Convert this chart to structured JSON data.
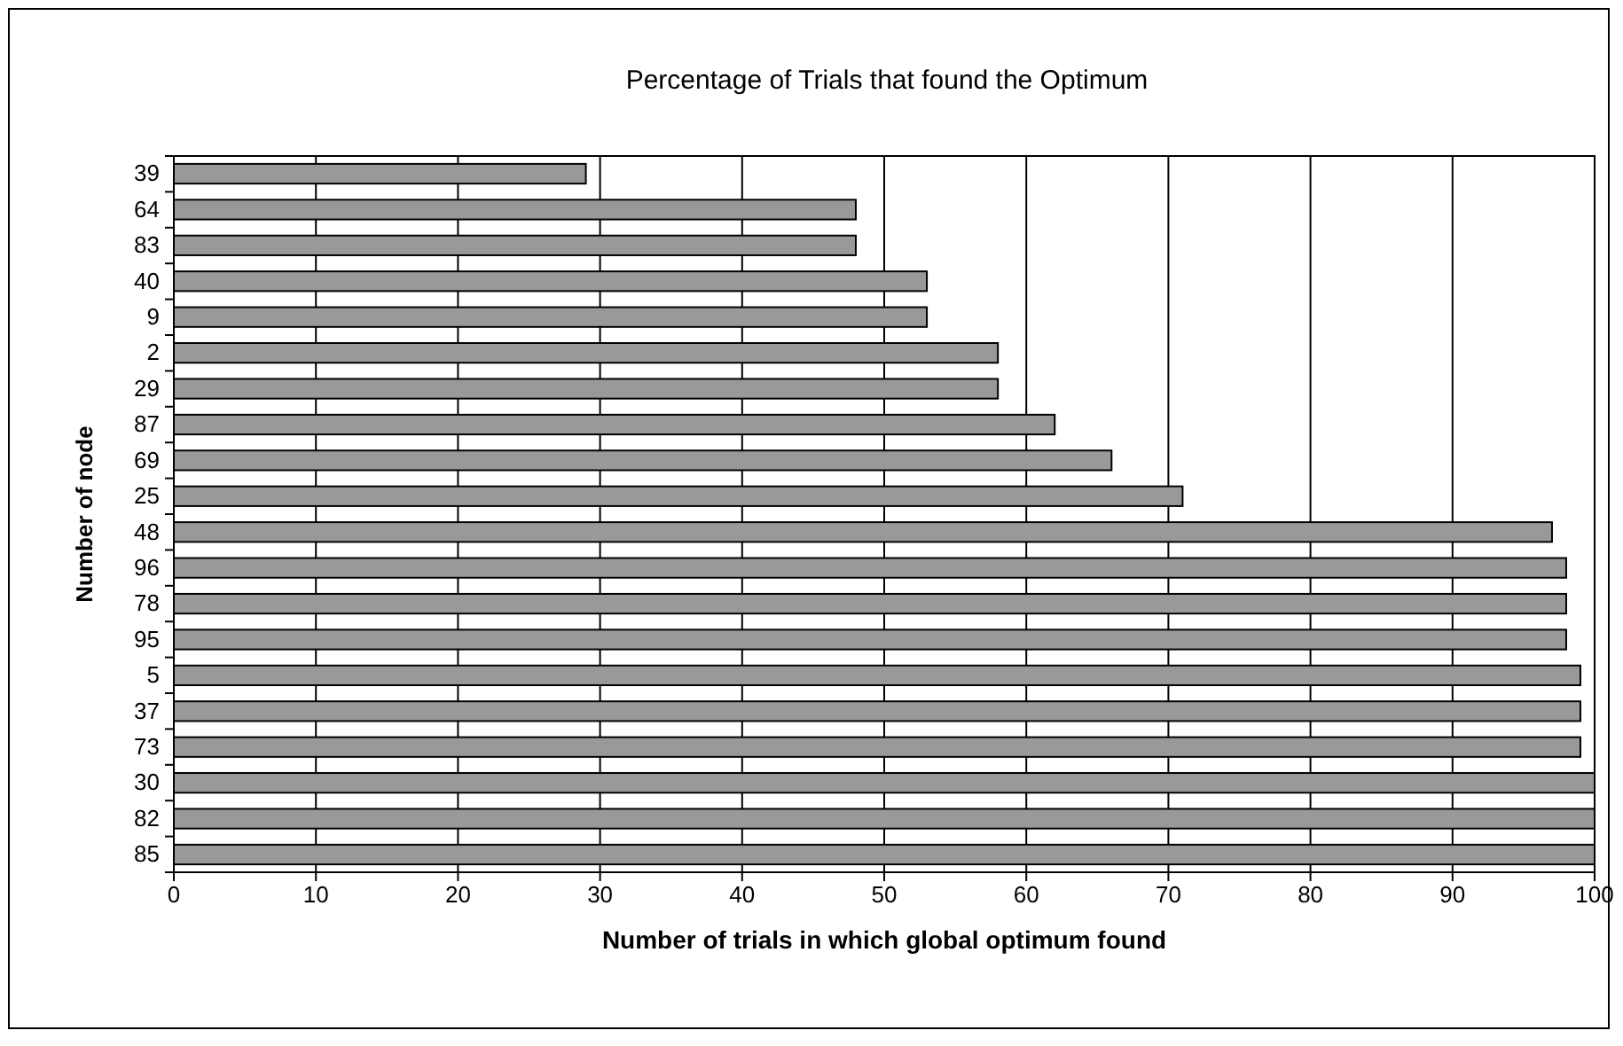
{
  "chart_data": {
    "type": "bar",
    "orientation": "horizontal",
    "title": "Percentage of Trials that found the Optimum",
    "xlabel": "Number of trials in which global optimum found",
    "ylabel": "Number of node",
    "categories": [
      "39",
      "64",
      "83",
      "40",
      "9",
      "2",
      "29",
      "87",
      "69",
      "25",
      "48",
      "96",
      "78",
      "95",
      "5",
      "37",
      "73",
      "30",
      "82",
      "85"
    ],
    "values": [
      29,
      48,
      48,
      53,
      53,
      58,
      58,
      62,
      66,
      71,
      97,
      98,
      98,
      98,
      99,
      99,
      99,
      100,
      100,
      100
    ],
    "color": "#999999",
    "xlim": [
      0,
      100
    ],
    "xticks": [
      0,
      10,
      20,
      30,
      40,
      50,
      60,
      70,
      80,
      90,
      100
    ],
    "grid": "x"
  }
}
